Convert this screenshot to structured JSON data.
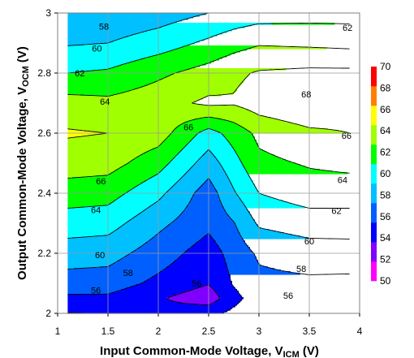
{
  "chart_data": {
    "type": "contour",
    "xlabel": {
      "main": "Input Common-Mode Voltage, V",
      "sub": "ICM",
      "unit": " (V)"
    },
    "ylabel": {
      "main": "Output Common-Mode Voltage, V",
      "sub": "OCM",
      "unit": " (V)"
    },
    "xlim": [
      1,
      4
    ],
    "ylim": [
      2,
      3
    ],
    "x_ticks": [
      "1",
      "1.5",
      "2",
      "2.5",
      "3",
      "3.5",
      "4"
    ],
    "y_ticks": [
      "2",
      "2.2",
      "2.4",
      "2.6",
      "2.8",
      "3"
    ],
    "grid": true,
    "colorbar": {
      "levels": [
        50,
        52,
        54,
        56,
        58,
        60,
        62,
        64,
        66,
        68,
        70
      ],
      "labels": [
        "50",
        "52",
        "54",
        "56",
        "58",
        "60",
        "62",
        "64",
        "66",
        "68",
        "70"
      ],
      "colors": [
        "#ff00ff",
        "#8000ff",
        "#0000ff",
        "#0060ff",
        "#00c0ff",
        "#00ffff",
        "#00ff00",
        "#a0ff00",
        "#ffff00",
        "#ff8000",
        "#ff0000"
      ]
    },
    "x": [
      1.1,
      1.5,
      2.0,
      2.5,
      2.75,
      3.0,
      3.5,
      3.9
    ],
    "y": [
      2.0,
      2.05,
      2.1,
      2.2,
      2.3,
      2.4,
      2.5,
      2.6,
      2.7,
      2.8,
      2.9,
      3.0
    ],
    "z": [
      [
        53.9,
        54.1,
        54.6,
        55.5,
        56.5,
        57.0,
        57.5,
        57.5
      ],
      [
        55.6,
        55.6,
        54.2,
        52.8,
        55.4,
        57.1,
        57.2,
        57.1
      ],
      [
        57.1,
        57.0,
        55.5,
        54.1,
        56.2,
        57.5,
        57.6,
        57.5
      ],
      [
        59.0,
        58.8,
        57.0,
        55.0,
        56.8,
        58.3,
        59.0,
        59.1
      ],
      [
        61.0,
        60.8,
        58.5,
        56.5,
        57.9,
        60.3,
        61.0,
        61.0
      ],
      [
        63.0,
        62.8,
        60.5,
        57.0,
        59.8,
        62.0,
        63.0,
        63.0
      ],
      [
        65.0,
        64.8,
        62.8,
        59.0,
        61.3,
        63.5,
        64.2,
        64.5
      ],
      [
        66.2,
        66.0,
        65.0,
        61.2,
        62.8,
        64.5,
        65.6,
        66.0
      ],
      [
        64.8,
        64.5,
        65.2,
        66.4,
        66.2,
        67.0,
        67.8,
        67.0
      ],
      [
        62.0,
        62.3,
        63.6,
        64.8,
        65.6,
        66.2,
        66.5,
        66.5
      ],
      [
        59.8,
        60.0,
        61.0,
        62.4,
        63.2,
        63.8,
        63.6,
        63.4
      ],
      [
        58.2,
        58.4,
        59.0,
        60.0,
        60.6,
        61.0,
        61.2,
        61.2
      ]
    ],
    "contour_labels": [
      {
        "text": "58",
        "x": 1.46,
        "y": 2.955
      },
      {
        "text": "60",
        "x": 1.39,
        "y": 2.883
      },
      {
        "text": "62",
        "x": 1.22,
        "y": 2.8
      },
      {
        "text": "64",
        "x": 1.47,
        "y": 2.705
      },
      {
        "text": "66",
        "x": 2.3,
        "y": 2.62
      },
      {
        "text": "68",
        "x": 3.47,
        "y": 2.73
      },
      {
        "text": "62",
        "x": 3.88,
        "y": 2.952
      },
      {
        "text": "66",
        "x": 3.87,
        "y": 2.592
      },
      {
        "text": "66",
        "x": 1.43,
        "y": 2.44
      },
      {
        "text": "64",
        "x": 1.38,
        "y": 2.345
      },
      {
        "text": "64",
        "x": 3.83,
        "y": 2.445
      },
      {
        "text": "62",
        "x": 3.77,
        "y": 2.342
      },
      {
        "text": "60",
        "x": 1.42,
        "y": 2.195
      },
      {
        "text": "60",
        "x": 3.5,
        "y": 2.24
      },
      {
        "text": "58",
        "x": 1.7,
        "y": 2.135
      },
      {
        "text": "58",
        "x": 3.42,
        "y": 2.148
      },
      {
        "text": "56",
        "x": 1.38,
        "y": 2.077
      },
      {
        "text": "56",
        "x": 3.29,
        "y": 2.06
      },
      {
        "text": "56",
        "x": 2.38,
        "y": 2.1
      }
    ]
  }
}
